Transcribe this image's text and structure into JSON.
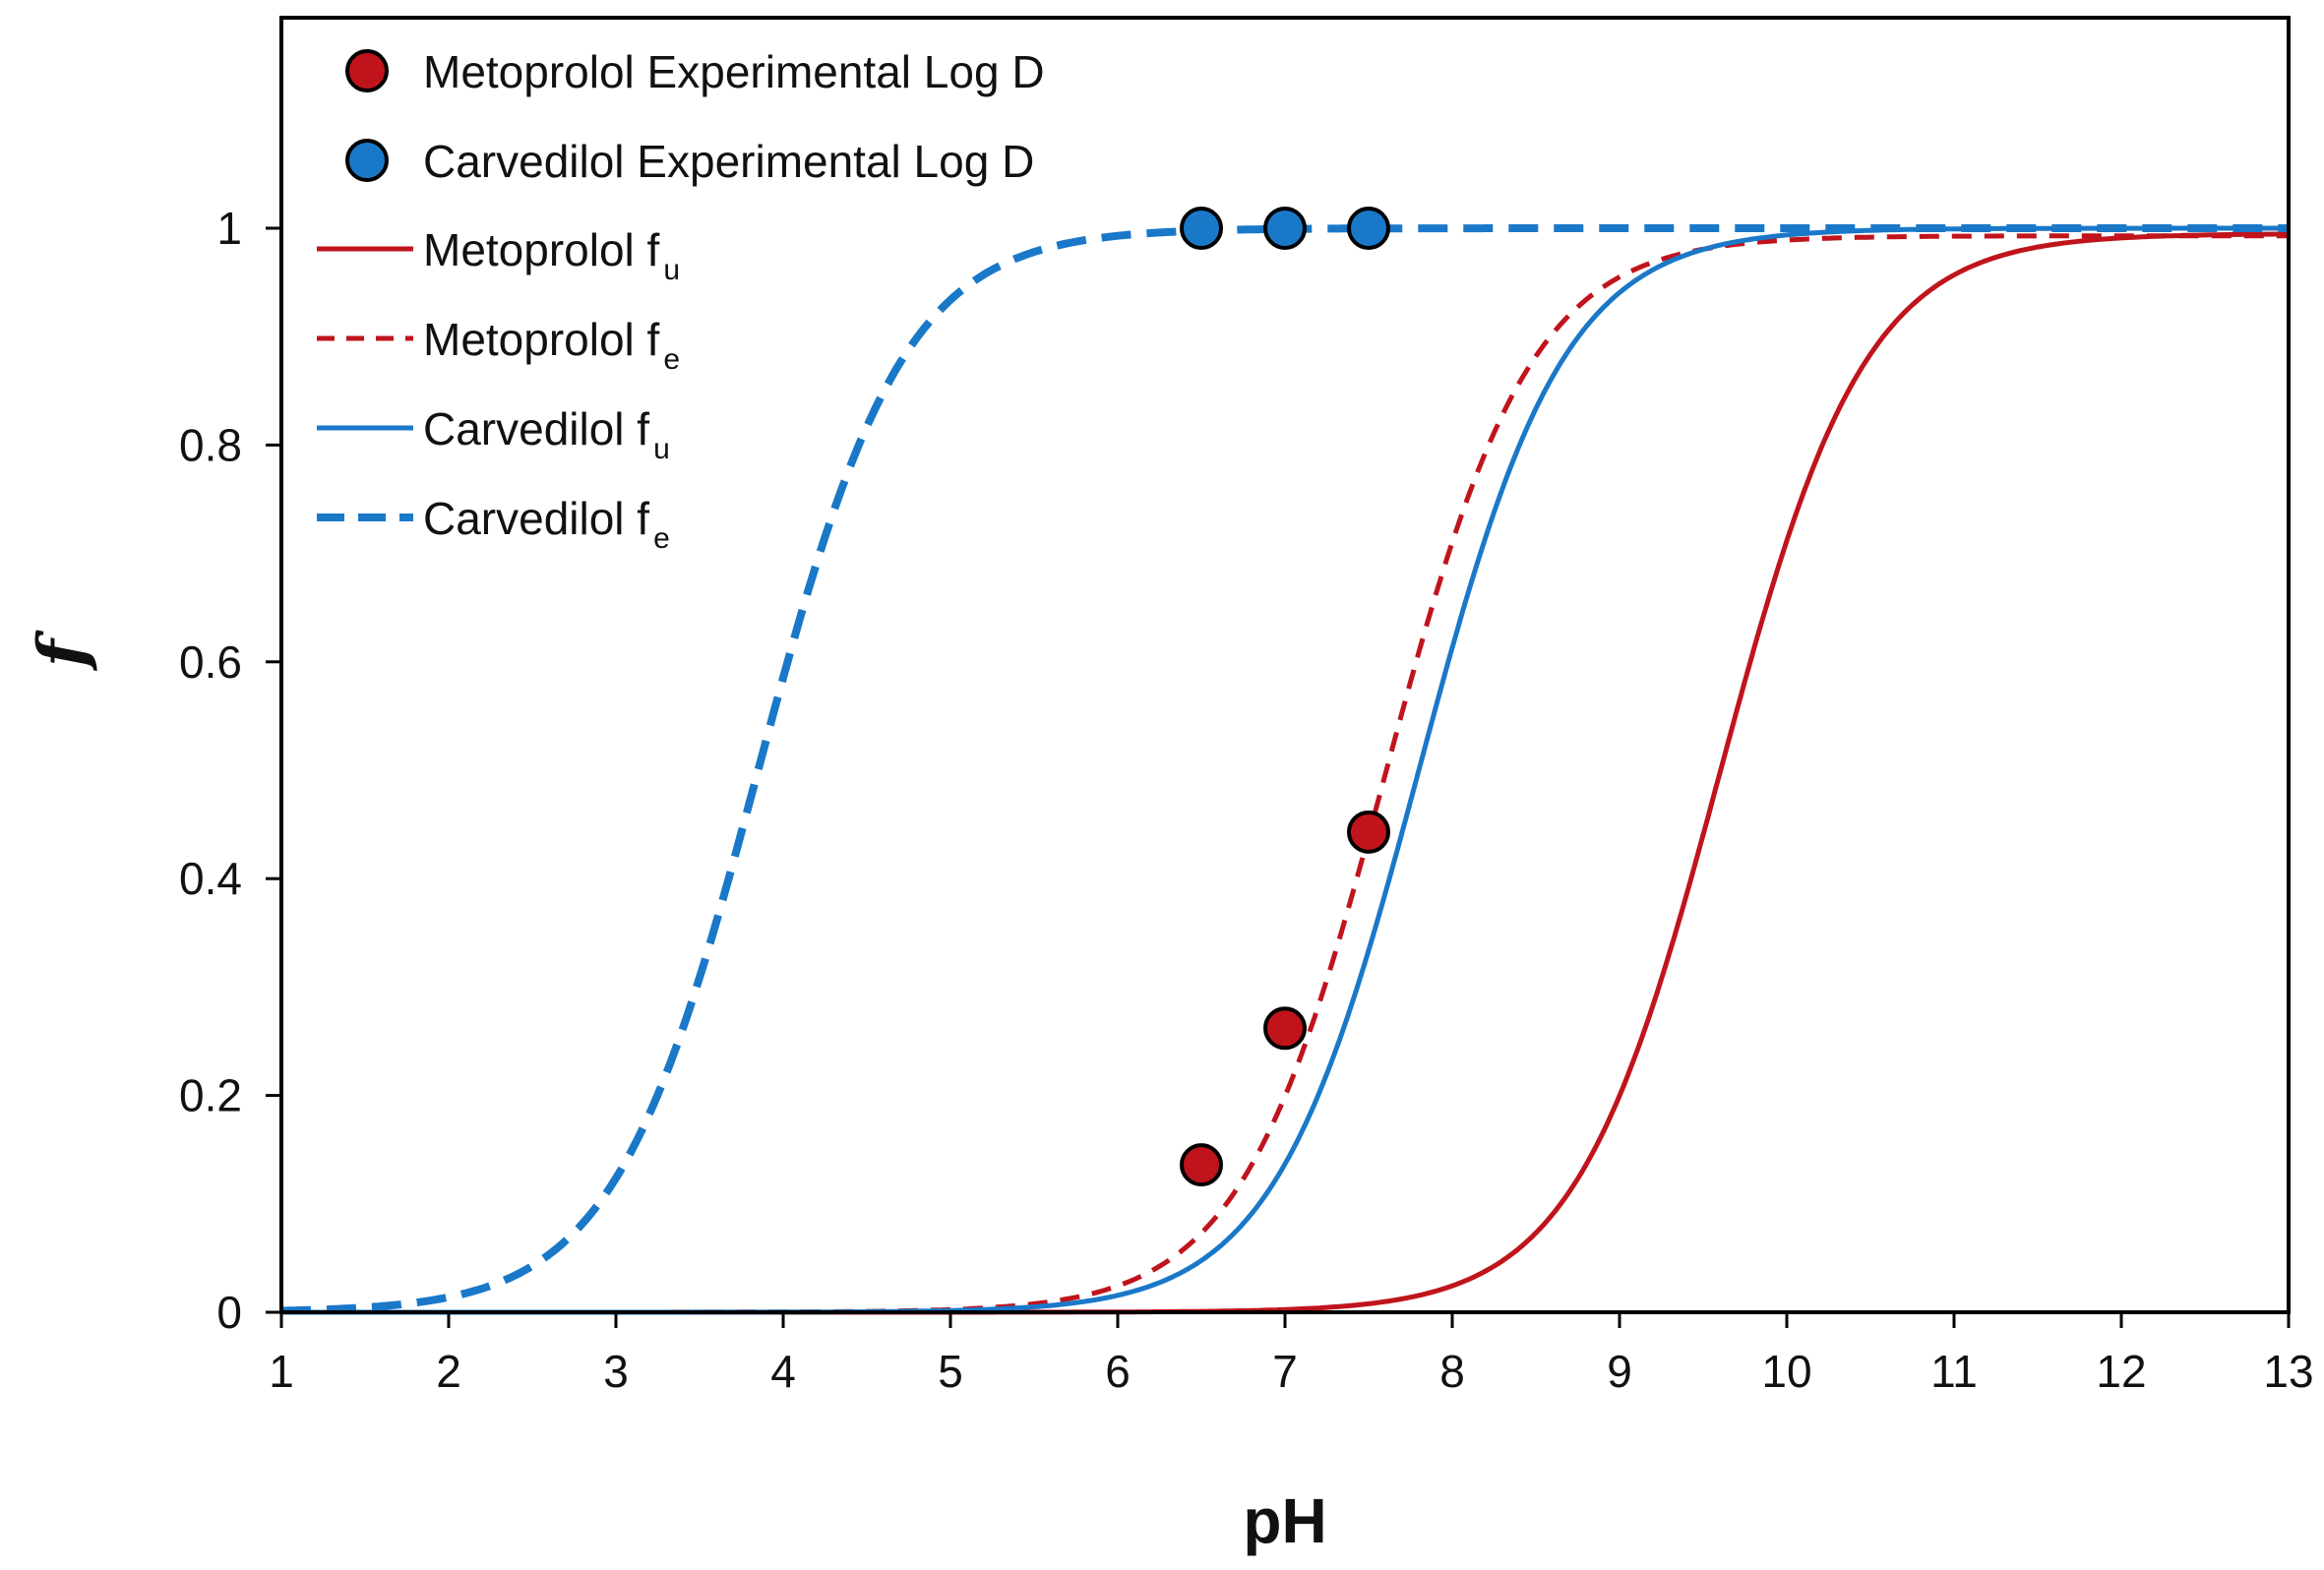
{
  "chart_data": {
    "type": "line",
    "title": "",
    "xlabel": "pH",
    "ylabel": "f",
    "xlim": [
      1,
      13
    ],
    "ylim": [
      0,
      1.2
    ],
    "xticks": [
      "1",
      "2",
      "3",
      "4",
      "5",
      "6",
      "7",
      "8",
      "9",
      "10",
      "11",
      "12",
      "13"
    ],
    "yticks": [
      "0",
      "0.2",
      "0.4",
      "0.6",
      "0.8",
      "1"
    ],
    "ytick_values": [
      0,
      0.2,
      0.4,
      0.6,
      0.8,
      1
    ],
    "grid": false,
    "legend_position": "top-left",
    "series": [
      {
        "name": "Metoprolol Experimental Log D",
        "kind": "scatter",
        "color": "#c0141c",
        "x": [
          6.5,
          7.0,
          7.5
        ],
        "y": [
          0.136,
          0.262,
          0.443
        ]
      },
      {
        "name": "Carvedilol Experimental Log D",
        "kind": "scatter",
        "color": "#1a78c8",
        "x": [
          6.5,
          7.0,
          7.5
        ],
        "y": [
          1.0,
          1.0,
          1.0
        ]
      },
      {
        "name": "Metoprolol f",
        "subscript": "u",
        "kind": "line",
        "style": "solid",
        "color": "#c0141c",
        "pKa": 9.6,
        "max": 0.995,
        "x": [
          1,
          2,
          3,
          4,
          5,
          6,
          7,
          7.5,
          8,
          8.5,
          9,
          9.5,
          10,
          10.5,
          11,
          11.5,
          12,
          12.5,
          13
        ],
        "y": [
          0,
          0,
          0,
          0,
          0,
          0.0004,
          0.004,
          0.0124,
          0.0245,
          0.0734,
          0.2009,
          0.443,
          0.7147,
          0.8828,
          0.9598,
          0.9812,
          0.9934,
          0.9946,
          0.995
        ]
      },
      {
        "name": "Metoprolol f",
        "subscript": "e",
        "kind": "line",
        "style": "dashed",
        "color": "#c0141c",
        "pKa": 7.6,
        "max": 0.993,
        "x": [
          1,
          2,
          3,
          4,
          5,
          5.5,
          6,
          6.5,
          7,
          7.5,
          8,
          8.5,
          9,
          9.5,
          10,
          11,
          12,
          13
        ],
        "y": [
          0,
          0,
          0,
          0,
          0.0025,
          0.008,
          0.0245,
          0.0734,
          0.2009,
          0.443,
          0.7147,
          0.8828,
          0.9598,
          0.9812,
          0.99,
          0.9925,
          0.993,
          0.993
        ]
      },
      {
        "name": "Carvedilol f",
        "subscript": "u",
        "kind": "line",
        "style": "solid",
        "color": "#1a78c8",
        "pKa": 7.8,
        "max": 1.0,
        "x": [
          1,
          2,
          3,
          4,
          5,
          5.5,
          6,
          6.5,
          7,
          7.5,
          8,
          8.5,
          9,
          9.5,
          10,
          11,
          12,
          13
        ],
        "y": [
          0,
          0,
          0,
          0,
          0.0016,
          0.005,
          0.0156,
          0.0476,
          0.1368,
          0.3334,
          0.6131,
          0.8338,
          0.9407,
          0.9804,
          0.9937,
          0.9994,
          1.0,
          1.0
        ]
      },
      {
        "name": "Carvedilol f",
        "subscript": "e",
        "kind": "line",
        "style": "dashed",
        "color": "#1a78c8",
        "pKa": 3.85,
        "max": 1.0,
        "x": [
          1,
          1.5,
          2,
          2.5,
          3,
          3.5,
          4,
          4.5,
          5,
          5.5,
          6,
          6.5,
          7,
          8,
          9,
          10,
          11,
          12,
          13
        ],
        "y": [
          0.0014,
          0.0045,
          0.0139,
          0.0426,
          0.1245,
          0.3088,
          0.5856,
          0.8172,
          0.9339,
          0.9781,
          0.993,
          0.9978,
          0.9993,
          1.0,
          1.0,
          1.0,
          1.0,
          1.0,
          1.0
        ]
      }
    ]
  }
}
